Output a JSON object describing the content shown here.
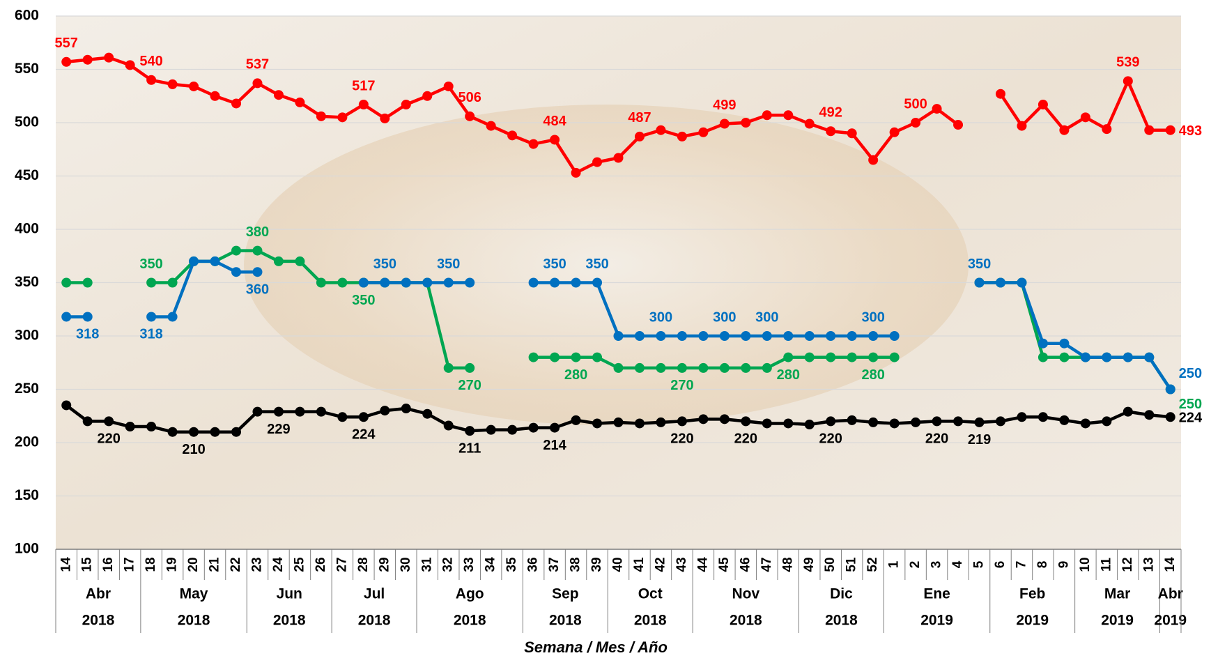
{
  "chart_data": {
    "type": "line",
    "x_label": "Semana / Mes / Año",
    "categories": [
      "14",
      "15",
      "16",
      "17",
      "18",
      "19",
      "20",
      "21",
      "22",
      "23",
      "24",
      "25",
      "26",
      "27",
      "28",
      "29",
      "30",
      "31",
      "32",
      "33",
      "34",
      "35",
      "36",
      "37",
      "38",
      "39",
      "40",
      "41",
      "42",
      "43",
      "44",
      "45",
      "46",
      "47",
      "48",
      "49",
      "50",
      "51",
      "52",
      "1",
      "2",
      "3",
      "4",
      "5",
      "6",
      "7",
      "8",
      "9",
      "10",
      "11",
      "12",
      "13",
      "14"
    ],
    "months": [
      "Abr",
      null,
      null,
      null,
      "May",
      null,
      null,
      null,
      null,
      "Jun",
      null,
      null,
      null,
      "Jul",
      null,
      null,
      null,
      "Ago",
      null,
      null,
      null,
      null,
      "Sep",
      null,
      null,
      null,
      "Oct",
      null,
      null,
      null,
      "Nov",
      null,
      null,
      null,
      null,
      "Dic",
      null,
      null,
      null,
      "Ene",
      null,
      null,
      null,
      null,
      "Feb",
      null,
      null,
      null,
      "Mar",
      null,
      null,
      null,
      "Abr"
    ],
    "years": [
      "2018",
      null,
      null,
      null,
      "2018",
      null,
      null,
      null,
      null,
      "2018",
      null,
      null,
      null,
      "2018",
      null,
      null,
      null,
      "2018",
      null,
      null,
      null,
      null,
      "2018",
      null,
      null,
      null,
      "2018",
      null,
      null,
      null,
      "2018",
      null,
      null,
      null,
      null,
      "2018",
      null,
      null,
      null,
      "2019",
      null,
      null,
      null,
      null,
      "2019",
      null,
      null,
      null,
      "2019",
      null,
      null,
      null,
      "2019"
    ],
    "ylim": [
      100,
      600
    ],
    "yticks": [
      100,
      150,
      200,
      250,
      300,
      350,
      400,
      450,
      500,
      550,
      600
    ],
    "grid": true,
    "series": [
      {
        "color": "#ff0000",
        "values": [
          557,
          559,
          561,
          554,
          540,
          536,
          534,
          525,
          518,
          537,
          526,
          519,
          506,
          505,
          517,
          504,
          517,
          525,
          534,
          506,
          497,
          488,
          480,
          484,
          453,
          463,
          467,
          487,
          493,
          487,
          491,
          499,
          500,
          507,
          507,
          499,
          492,
          490,
          465,
          491,
          500,
          513,
          498,
          null,
          527,
          497,
          517,
          493,
          505,
          494,
          539,
          493,
          493
        ],
        "value_labels": [
          "557",
          null,
          null,
          null,
          "540",
          null,
          null,
          null,
          null,
          "537",
          null,
          null,
          null,
          null,
          "517",
          null,
          null,
          null,
          null,
          "506",
          null,
          null,
          null,
          "484",
          null,
          null,
          null,
          "487",
          null,
          null,
          null,
          "499",
          null,
          null,
          null,
          null,
          "492",
          null,
          null,
          null,
          "500",
          null,
          null,
          null,
          null,
          null,
          null,
          null,
          null,
          null,
          "539",
          null,
          "493"
        ]
      },
      {
        "color": "#00a651",
        "values": [
          350,
          350,
          null,
          null,
          350,
          350,
          370,
          370,
          380,
          380,
          370,
          370,
          350,
          350,
          350,
          350,
          350,
          350,
          270,
          270,
          null,
          null,
          280,
          280,
          280,
          280,
          270,
          270,
          270,
          270,
          270,
          270,
          270,
          270,
          280,
          280,
          280,
          280,
          280,
          280,
          null,
          null,
          null,
          350,
          350,
          350,
          280,
          280,
          280,
          280,
          280,
          280,
          250
        ],
        "value_labels": [
          null,
          null,
          null,
          null,
          "350",
          null,
          null,
          null,
          null,
          "380",
          null,
          null,
          null,
          null,
          "350",
          null,
          null,
          null,
          null,
          "270",
          null,
          null,
          null,
          null,
          "280",
          null,
          null,
          null,
          null,
          "270",
          null,
          null,
          null,
          null,
          "280",
          null,
          null,
          null,
          "280",
          null,
          null,
          null,
          null,
          null,
          null,
          null,
          null,
          null,
          null,
          null,
          null,
          null,
          "250"
        ]
      },
      {
        "color": "#0070c0",
        "values": [
          318,
          318,
          null,
          null,
          318,
          318,
          370,
          370,
          360,
          360,
          null,
          null,
          null,
          null,
          350,
          350,
          350,
          350,
          350,
          350,
          null,
          null,
          350,
          350,
          350,
          350,
          300,
          300,
          300,
          300,
          300,
          300,
          300,
          300,
          300,
          300,
          300,
          300,
          300,
          300,
          null,
          null,
          null,
          350,
          350,
          350,
          293,
          293,
          280,
          280,
          280,
          280,
          250
        ],
        "value_labels": [
          null,
          "318",
          null,
          null,
          "318",
          null,
          null,
          null,
          null,
          "360",
          null,
          null,
          null,
          null,
          null,
          "350",
          null,
          null,
          "350",
          null,
          null,
          null,
          null,
          "350",
          null,
          "350",
          null,
          null,
          "300",
          null,
          null,
          "300",
          null,
          "300",
          null,
          null,
          null,
          null,
          "300",
          null,
          null,
          null,
          null,
          "350",
          null,
          null,
          null,
          null,
          null,
          null,
          null,
          null,
          "250"
        ]
      },
      {
        "color": "#000000",
        "values": [
          235,
          220,
          220,
          215,
          215,
          210,
          210,
          210,
          210,
          229,
          229,
          229,
          229,
          224,
          224,
          230,
          232,
          227,
          216,
          211,
          212,
          212,
          214,
          214,
          221,
          218,
          219,
          218,
          219,
          220,
          222,
          222,
          220,
          218,
          218,
          217,
          220,
          221,
          219,
          218,
          219,
          220,
          220,
          219,
          220,
          224,
          224,
          221,
          218,
          220,
          229,
          226,
          224
        ],
        "value_labels": [
          null,
          null,
          "220",
          null,
          null,
          null,
          "210",
          null,
          null,
          null,
          "229",
          null,
          null,
          null,
          "224",
          null,
          null,
          null,
          null,
          "211",
          null,
          null,
          null,
          "214",
          null,
          null,
          null,
          null,
          null,
          "220",
          null,
          null,
          "220",
          null,
          null,
          null,
          "220",
          null,
          null,
          null,
          null,
          "220",
          null,
          "219",
          null,
          null,
          null,
          null,
          null,
          null,
          null,
          null,
          "224"
        ]
      }
    ]
  }
}
